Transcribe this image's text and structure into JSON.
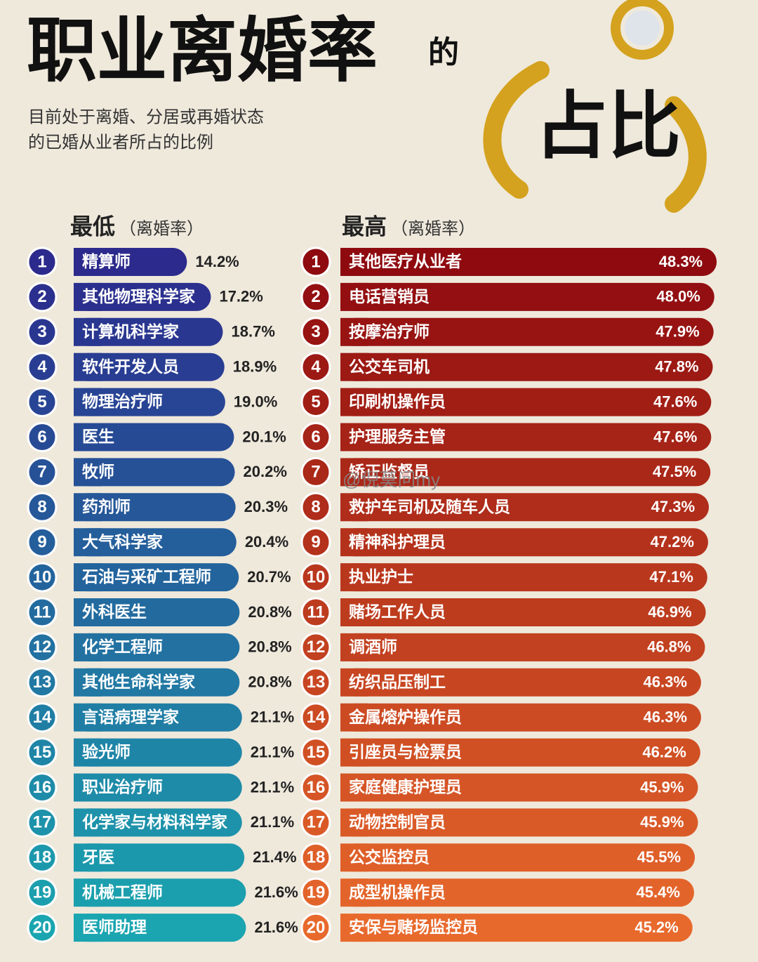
{
  "header": {
    "title": "职业离婚率",
    "title_suffix": "的",
    "title_big": "占比",
    "subtitle": [
      "目前处于离婚、分居或再婚状态",
      "的已婚从业者所占的比例"
    ]
  },
  "watermark": "@倪莫问my",
  "chart_data": [
    {
      "type": "bar",
      "orientation": "horizontal",
      "title": "最低",
      "subtitle": "（离婚率）",
      "ranks": [
        1,
        2,
        3,
        4,
        5,
        6,
        7,
        8,
        9,
        10,
        11,
        12,
        13,
        14,
        15,
        16,
        17,
        18,
        19,
        20
      ],
      "categories": [
        "精算师",
        "其他物理科学家",
        "计算机科学家",
        "软件开发人员",
        "物理治疗师",
        "医生",
        "牧师",
        "药剂师",
        "大气科学家",
        "石油与采矿工程师",
        "外科医生",
        "化学工程师",
        "其他生命科学家",
        "言语病理学家",
        "验光师",
        "职业治疗师",
        "化学家与材料科学家",
        "牙医",
        "机械工程师",
        "医师助理"
      ],
      "values": [
        14.2,
        17.2,
        18.7,
        18.9,
        19.0,
        20.1,
        20.2,
        20.3,
        20.4,
        20.7,
        20.8,
        20.8,
        20.8,
        21.1,
        21.1,
        21.1,
        21.1,
        21.4,
        21.6,
        21.6
      ],
      "value_labels": [
        "14.2%",
        "17.2%",
        "18.7%",
        "18.9%",
        "19.0%",
        "20.1%",
        "20.2%",
        "20.3%",
        "20.4%",
        "20.7%",
        "20.8%",
        "20.8%",
        "20.8%",
        "21.1%",
        "21.1%",
        "21.1%",
        "21.1%",
        "21.4%",
        "21.6%",
        "21.6%"
      ],
      "colors": [
        "#2c2a8c",
        "#1aa5b0"
      ],
      "xlim": [
        0,
        22
      ],
      "label_position": "outside"
    },
    {
      "type": "bar",
      "orientation": "horizontal",
      "title": "最高",
      "subtitle": "（离婚率）",
      "ranks": [
        1,
        2,
        3,
        4,
        5,
        6,
        7,
        8,
        9,
        10,
        11,
        12,
        13,
        14,
        15,
        16,
        17,
        18,
        19,
        20
      ],
      "categories": [
        "其他医疗从业者",
        "电话营销员",
        "按摩治疗师",
        "公交车司机",
        "印刷机操作员",
        "护理服务主管",
        "矫正监督员",
        "救护车司机及随车人员",
        "精神科护理员",
        "执业护士",
        "赌场工作人员",
        "调酒师",
        "纺织品压制工",
        "金属熔炉操作员",
        "引座员与检票员",
        "家庭健康护理员",
        "动物控制官员",
        "公交监控员",
        "成型机操作员",
        "安保与赌场监控员"
      ],
      "values": [
        48.3,
        48.0,
        47.9,
        47.8,
        47.6,
        47.6,
        47.5,
        47.3,
        47.2,
        47.1,
        46.9,
        46.8,
        46.3,
        46.3,
        46.2,
        45.9,
        45.9,
        45.5,
        45.4,
        45.2
      ],
      "value_labels": [
        "48.3%",
        "48.0%",
        "47.9%",
        "47.8%",
        "47.6%",
        "47.6%",
        "47.5%",
        "47.3%",
        "47.2%",
        "47.1%",
        "46.9%",
        "46.8%",
        "46.3%",
        "46.3%",
        "46.2%",
        "45.9%",
        "45.9%",
        "45.5%",
        "45.4%",
        "45.2%"
      ],
      "colors": [
        "#8e0a0f",
        "#e8692c"
      ],
      "xlim": [
        0,
        50
      ],
      "label_position": "inside"
    }
  ]
}
